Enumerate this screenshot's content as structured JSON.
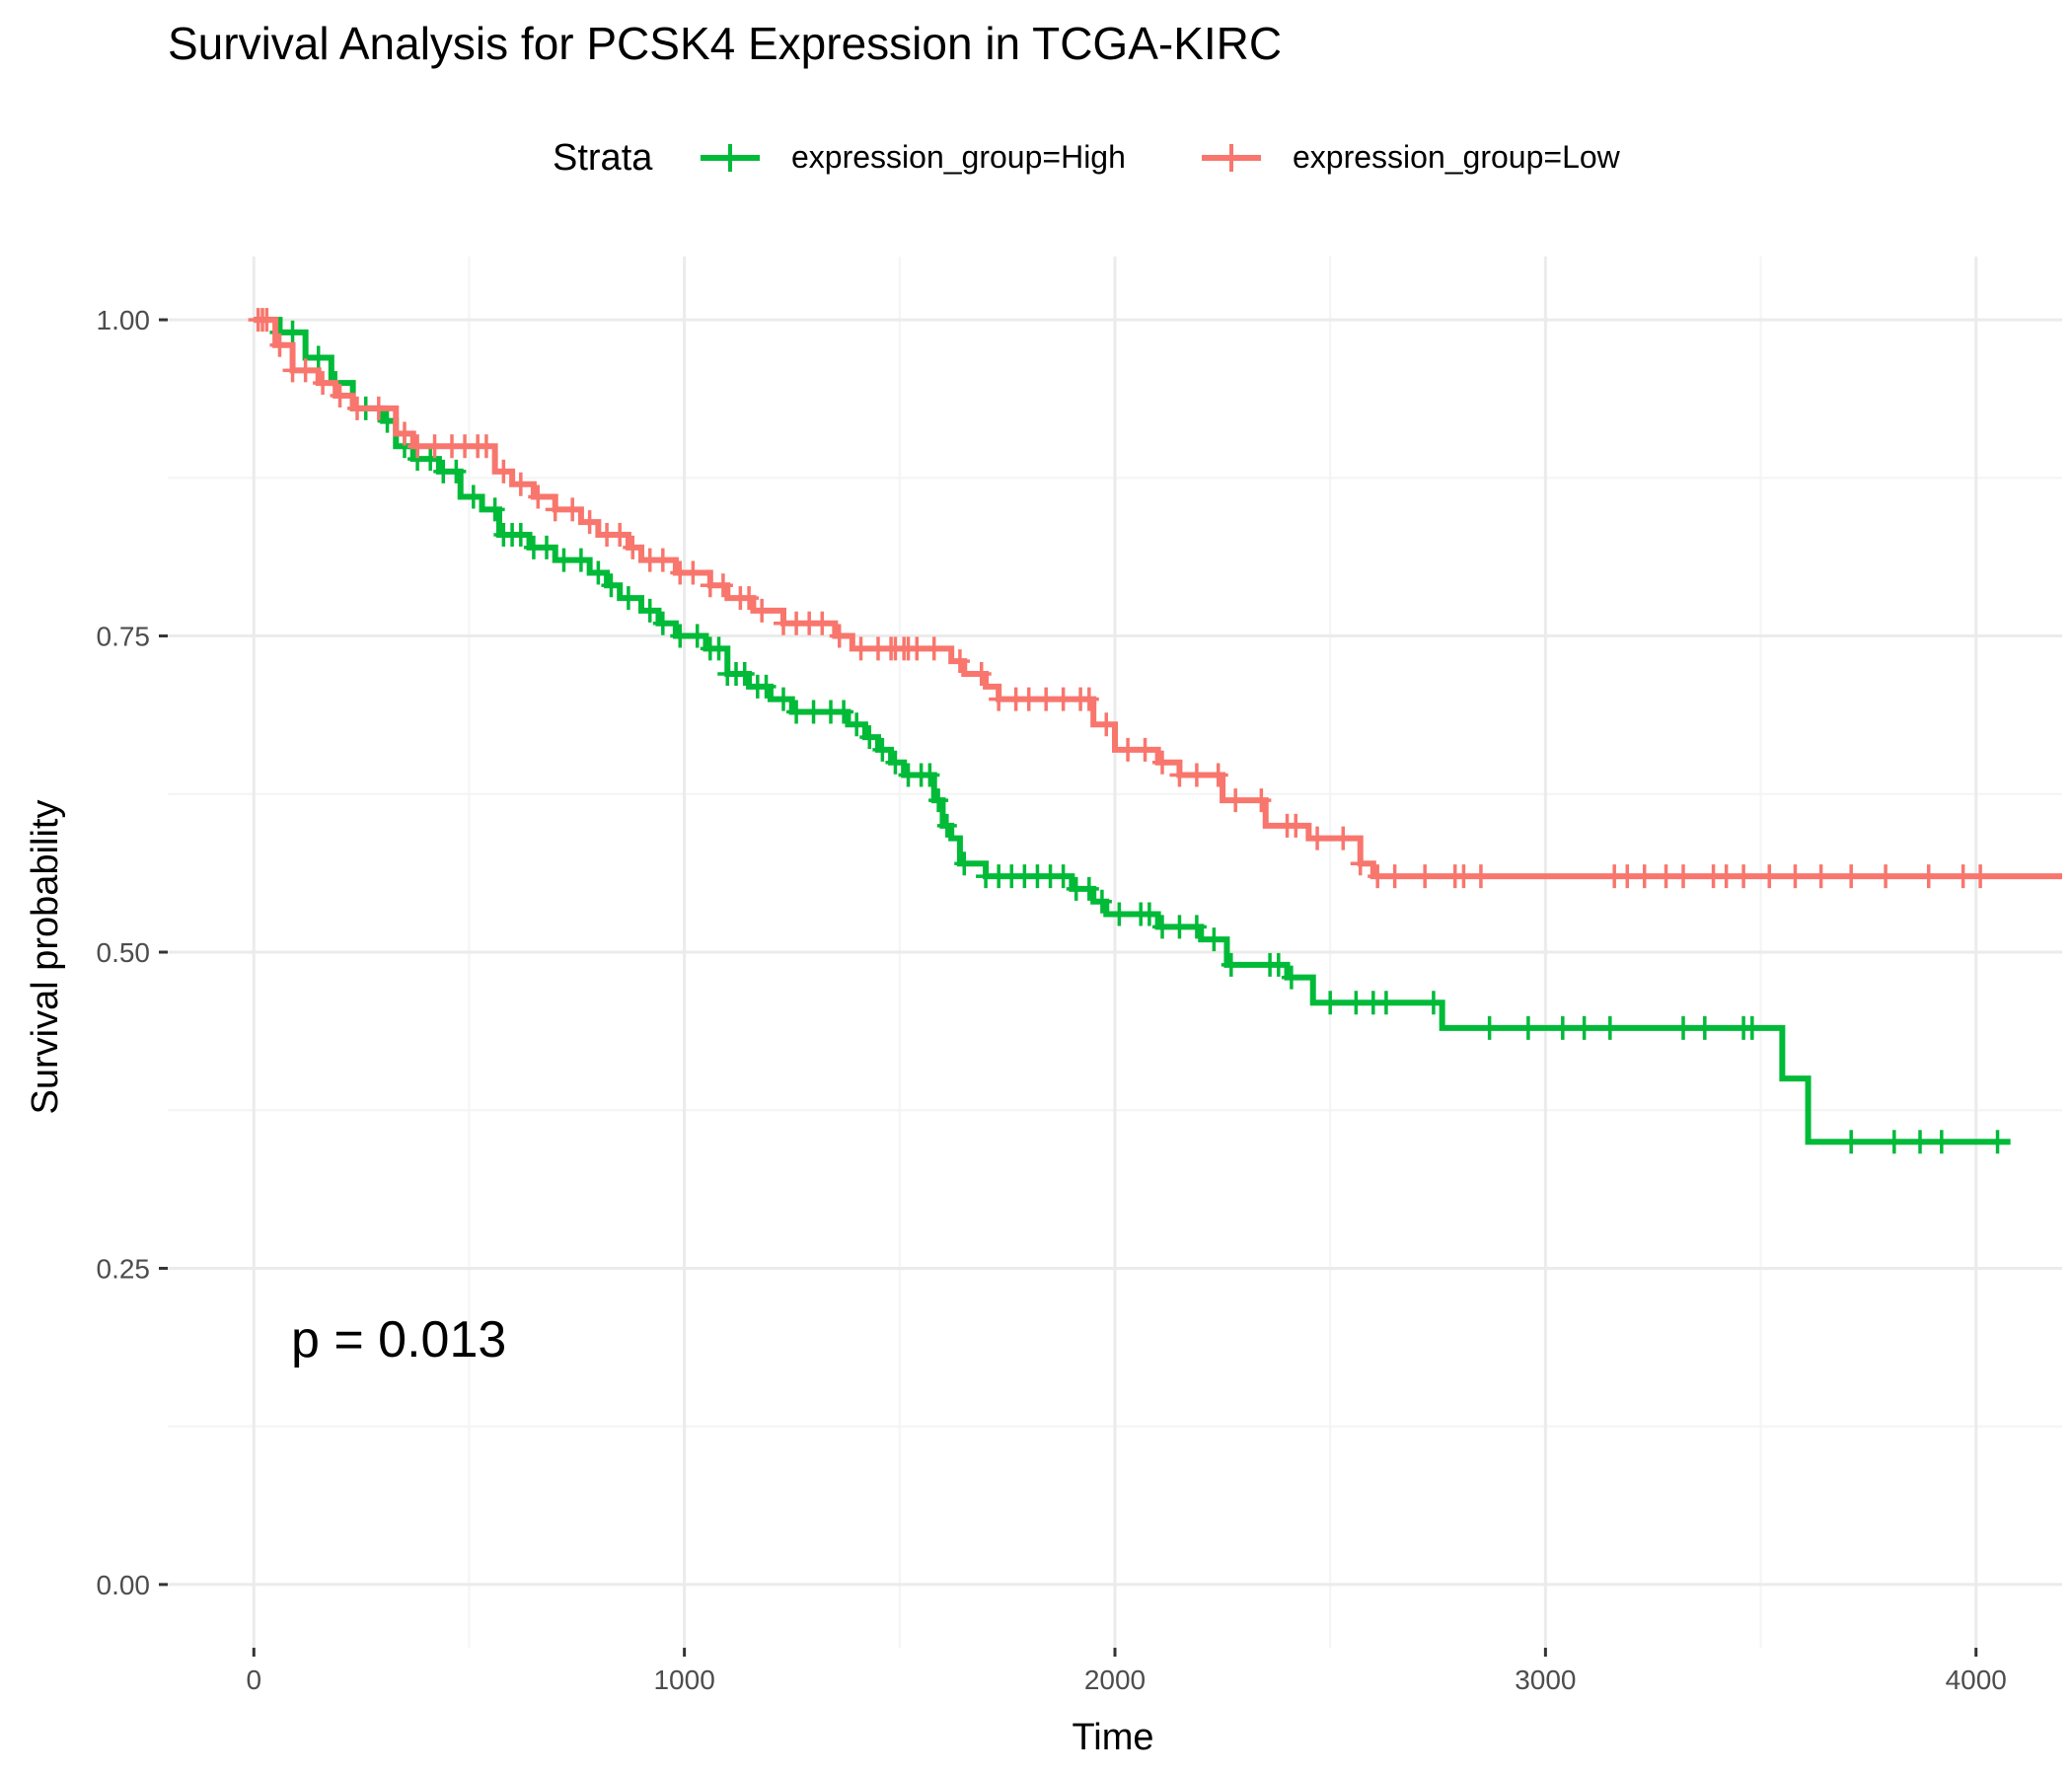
{
  "chart_data": {
    "type": "line",
    "subtype": "kaplan-meier step",
    "title": "Survival Analysis for PCSK4 Expression in TCGA-KIRC",
    "xlabel": "Time",
    "ylabel": "Survival probability",
    "xlim": [
      -200,
      4200
    ],
    "ylim": [
      -0.05,
      1.05
    ],
    "x_ticks": [
      0,
      1000,
      2000,
      3000,
      4000
    ],
    "x_tick_labels": [
      "0",
      "1000",
      "2000",
      "3000",
      "4000"
    ],
    "y_ticks": [
      0,
      0.25,
      0.5,
      0.75,
      1.0
    ],
    "y_tick_labels": [
      "0.00",
      "0.25",
      "0.50",
      "0.75",
      "1.00"
    ],
    "grid": true,
    "legend": {
      "position": "top",
      "title": "Strata",
      "entries": [
        "expression_group=High",
        "expression_group=Low"
      ]
    },
    "annotation": "p = 0.013",
    "series": [
      {
        "name": "expression_group=High",
        "color": "#00BA38",
        "steps": [
          [
            0,
            1.0
          ],
          [
            60,
            0.99
          ],
          [
            120,
            0.97
          ],
          [
            180,
            0.95
          ],
          [
            230,
            0.93
          ],
          [
            300,
            0.92
          ],
          [
            330,
            0.9
          ],
          [
            370,
            0.89
          ],
          [
            430,
            0.88
          ],
          [
            480,
            0.86
          ],
          [
            530,
            0.85
          ],
          [
            570,
            0.83
          ],
          [
            640,
            0.82
          ],
          [
            700,
            0.81
          ],
          [
            780,
            0.8
          ],
          [
            820,
            0.79
          ],
          [
            850,
            0.78
          ],
          [
            900,
            0.77
          ],
          [
            940,
            0.76
          ],
          [
            980,
            0.75
          ],
          [
            1050,
            0.74
          ],
          [
            1100,
            0.72
          ],
          [
            1150,
            0.71
          ],
          [
            1200,
            0.7
          ],
          [
            1250,
            0.69
          ],
          [
            1380,
            0.68
          ],
          [
            1420,
            0.67
          ],
          [
            1450,
            0.66
          ],
          [
            1480,
            0.65
          ],
          [
            1510,
            0.64
          ],
          [
            1580,
            0.62
          ],
          [
            1600,
            0.6
          ],
          [
            1620,
            0.59
          ],
          [
            1640,
            0.57
          ],
          [
            1700,
            0.56
          ],
          [
            1900,
            0.55
          ],
          [
            1950,
            0.54
          ],
          [
            1980,
            0.53
          ],
          [
            2100,
            0.52
          ],
          [
            2200,
            0.51
          ],
          [
            2260,
            0.49
          ],
          [
            2400,
            0.48
          ],
          [
            2460,
            0.46
          ],
          [
            2760,
            0.44
          ],
          [
            3550,
            0.4
          ],
          [
            3610,
            0.35
          ]
        ],
        "end_time": 4080,
        "censor_times": [
          60,
          90,
          150,
          190,
          260,
          310,
          350,
          380,
          410,
          440,
          470,
          510,
          560,
          580,
          600,
          620,
          650,
          680,
          720,
          760,
          800,
          830,
          870,
          920,
          950,
          990,
          1030,
          1060,
          1080,
          1100,
          1120,
          1140,
          1170,
          1190,
          1230,
          1260,
          1300,
          1340,
          1370,
          1400,
          1430,
          1460,
          1490,
          1520,
          1550,
          1570,
          1590,
          1610,
          1650,
          1700,
          1730,
          1760,
          1790,
          1820,
          1850,
          1880,
          1910,
          1940,
          1970,
          2010,
          2060,
          2080,
          2110,
          2150,
          2190,
          2230,
          2270,
          2360,
          2380,
          2410,
          2500,
          2560,
          2600,
          2630,
          2740,
          2870,
          2960,
          3040,
          3090,
          3150,
          3320,
          3370,
          3460,
          3480,
          3710,
          3810,
          3870,
          3920,
          4050
        ]
      },
      {
        "name": "expression_group=Low",
        "color": "#F8766D",
        "steps": [
          [
            0,
            1.0
          ],
          [
            50,
            0.98
          ],
          [
            90,
            0.96
          ],
          [
            150,
            0.95
          ],
          [
            190,
            0.94
          ],
          [
            230,
            0.93
          ],
          [
            330,
            0.91
          ],
          [
            370,
            0.9
          ],
          [
            450,
            0.9
          ],
          [
            560,
            0.88
          ],
          [
            600,
            0.87
          ],
          [
            650,
            0.86
          ],
          [
            700,
            0.85
          ],
          [
            760,
            0.84
          ],
          [
            800,
            0.83
          ],
          [
            870,
            0.82
          ],
          [
            900,
            0.81
          ],
          [
            980,
            0.8
          ],
          [
            1060,
            0.79
          ],
          [
            1100,
            0.78
          ],
          [
            1160,
            0.77
          ],
          [
            1230,
            0.76
          ],
          [
            1350,
            0.75
          ],
          [
            1390,
            0.74
          ],
          [
            1620,
            0.73
          ],
          [
            1650,
            0.72
          ],
          [
            1700,
            0.71
          ],
          [
            1730,
            0.7
          ],
          [
            1950,
            0.68
          ],
          [
            2000,
            0.66
          ],
          [
            2100,
            0.65
          ],
          [
            2150,
            0.64
          ],
          [
            2250,
            0.62
          ],
          [
            2350,
            0.6
          ],
          [
            2450,
            0.59
          ],
          [
            2570,
            0.57
          ],
          [
            2600,
            0.56
          ]
        ],
        "end_time": 4200,
        "censor_times": [
          10,
          20,
          30,
          60,
          90,
          120,
          160,
          200,
          240,
          290,
          350,
          380,
          420,
          460,
          490,
          520,
          540,
          580,
          620,
          660,
          700,
          740,
          780,
          820,
          850,
          880,
          920,
          950,
          990,
          1020,
          1060,
          1090,
          1130,
          1150,
          1180,
          1230,
          1260,
          1290,
          1320,
          1360,
          1410,
          1450,
          1480,
          1490,
          1510,
          1520,
          1540,
          1580,
          1640,
          1690,
          1730,
          1770,
          1800,
          1840,
          1880,
          1920,
          1940,
          1980,
          2030,
          2070,
          2110,
          2150,
          2190,
          2240,
          2280,
          2340,
          2400,
          2420,
          2470,
          2530,
          2570,
          2610,
          2650,
          2720,
          2790,
          2810,
          2850,
          3160,
          3190,
          3230,
          3280,
          3320,
          3390,
          3420,
          3460,
          3520,
          3580,
          3640,
          3710,
          3790,
          3890,
          3970,
          4010
        ]
      }
    ]
  },
  "colors": {
    "grid_major": "#EBEBEB",
    "grid_minor": "#F4F4F4",
    "tick_mark": "#333333"
  }
}
